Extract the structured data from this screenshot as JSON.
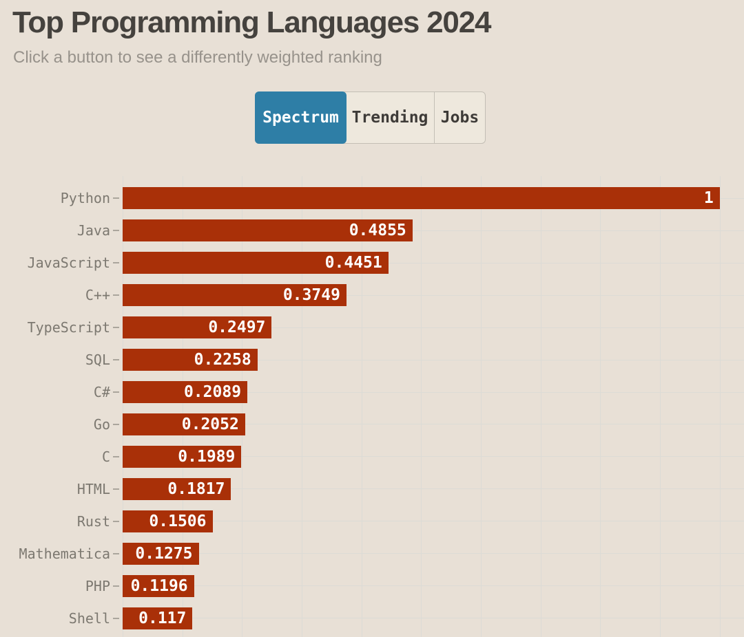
{
  "header": {
    "title": "Top Programming Languages 2024",
    "subtitle": "Click a button to see a differently weighted ranking"
  },
  "buttons": [
    {
      "label": "Spectrum",
      "active": true
    },
    {
      "label": "Trending",
      "active": false
    },
    {
      "label": "Jobs",
      "active": false
    }
  ],
  "colors": {
    "background": "#e8e0d6",
    "bar": "#a93008",
    "active_button": "#2e7ea6",
    "inactive_button": "#eee8dd",
    "gridline": "#dcdbd6",
    "bar_value_text": "#ffffff",
    "label_text": "#7c7870"
  },
  "chart_data": {
    "type": "bar",
    "orientation": "horizontal",
    "title": "Top Programming Languages 2024",
    "categories": [
      "Python",
      "Java",
      "JavaScript",
      "C++",
      "TypeScript",
      "SQL",
      "C#",
      "Go",
      "C",
      "HTML",
      "Rust",
      "Mathematica",
      "PHP",
      "Shell"
    ],
    "values": [
      1,
      0.4855,
      0.4451,
      0.3749,
      0.2497,
      0.2258,
      0.2089,
      0.2052,
      0.1989,
      0.1817,
      0.1506,
      0.1275,
      0.1196,
      0.117
    ],
    "value_labels": [
      "1",
      "0.4855",
      "0.4451",
      "0.3749",
      "0.2497",
      "0.2258",
      "0.2089",
      "0.2052",
      "0.1989",
      "0.1817",
      "0.1506",
      "0.1275",
      "0.1196",
      "0.117"
    ],
    "xlabel": "",
    "ylabel": "",
    "xlim": [
      0,
      1.04
    ],
    "grid": true,
    "gridline_step": 0.1,
    "legend": false
  }
}
